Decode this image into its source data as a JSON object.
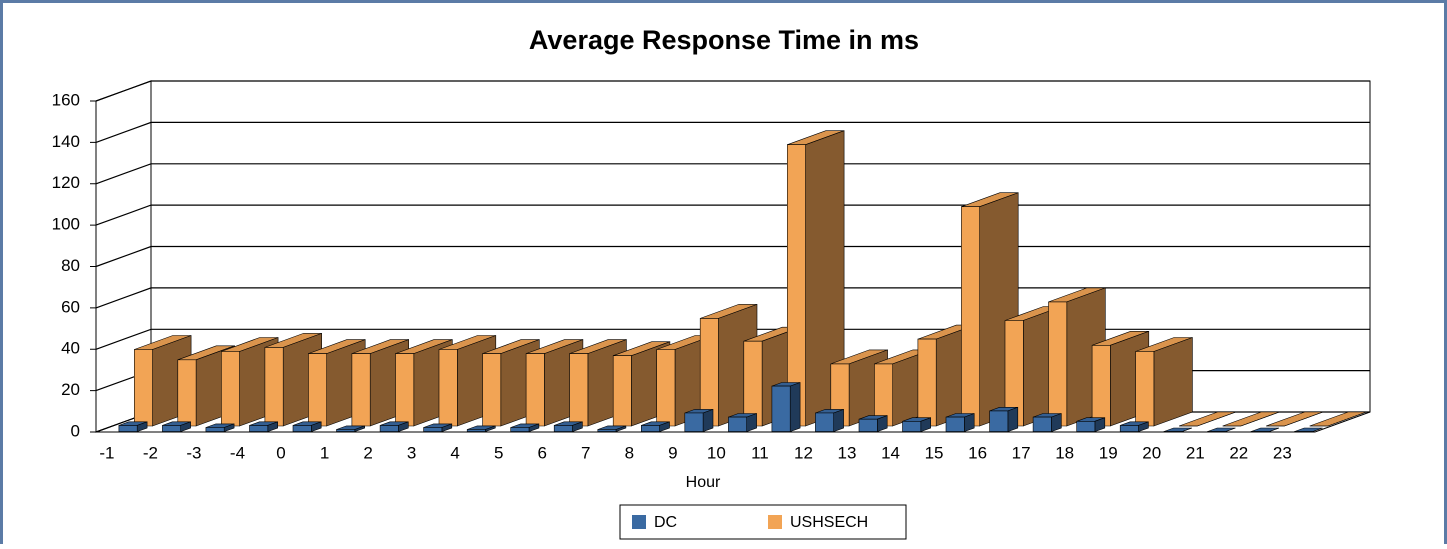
{
  "chart_data": {
    "type": "bar3d",
    "title": "Average Response Time in ms",
    "xlabel": "Hour",
    "categories": [
      "-1",
      "-2",
      "-3",
      "-4",
      "0",
      "1",
      "2",
      "3",
      "4",
      "5",
      "6",
      "7",
      "8",
      "9",
      "10",
      "11",
      "12",
      "13",
      "14",
      "15",
      "16",
      "17",
      "18",
      "19",
      "20",
      "21",
      "22",
      "23"
    ],
    "series": [
      {
        "name": "DC",
        "color": "#3a6aa2",
        "values": [
          3,
          3,
          2,
          3,
          3,
          1,
          3,
          2,
          1,
          2,
          3,
          1,
          3,
          9,
          7,
          22,
          9,
          6,
          5,
          7,
          10,
          7,
          5,
          3,
          0,
          0,
          0,
          0
        ]
      },
      {
        "name": "USHSECH",
        "color": "#f2a455",
        "values": [
          37,
          32,
          36,
          38,
          35,
          35,
          35,
          37,
          35,
          35,
          35,
          34,
          37,
          52,
          41,
          136,
          30,
          30,
          42,
          106,
          51,
          60,
          39,
          36,
          0,
          0,
          0,
          0
        ]
      }
    ],
    "ylim": [
      0,
      160
    ],
    "yticks": [
      0,
      20,
      40,
      60,
      80,
      100,
      120,
      140,
      160
    ],
    "grid": true,
    "legend": "bottom"
  }
}
